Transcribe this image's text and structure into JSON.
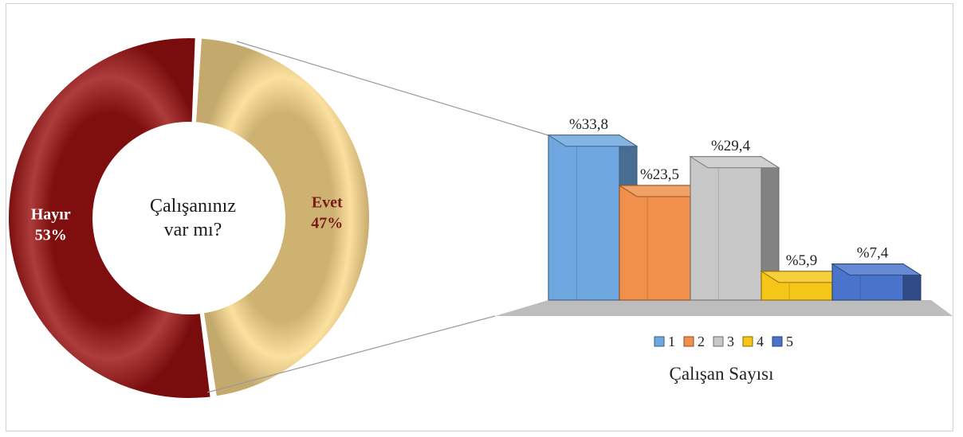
{
  "chart_data": [
    {
      "type": "pie",
      "variant": "doughnut",
      "center_label": [
        "Çalışanınız",
        "var mı?"
      ],
      "slices": [
        {
          "name": "Evet",
          "value_label": "47%",
          "value": 47,
          "color": "#fbd98a",
          "label_color": "#7a1a1a"
        },
        {
          "name": "Hayır",
          "value_label": "53%",
          "value": 53,
          "color": "#9b1111",
          "label_color": "#ffffff"
        }
      ]
    },
    {
      "type": "bar",
      "style": "3d",
      "xlabel": "Çalışan Sayısı",
      "legend_position": "bottom",
      "categories": [
        "1",
        "2",
        "3",
        "4",
        "5"
      ],
      "values": [
        33.8,
        23.5,
        29.4,
        5.9,
        7.4
      ],
      "data_labels": [
        "%33,8",
        "%23,5",
        "%29,4",
        "%5,9",
        "%7,4"
      ],
      "colors": [
        "#6fa8e0",
        "#f0904a",
        "#c8c8c8",
        "#f5c518",
        "#4a74cc"
      ]
    }
  ]
}
